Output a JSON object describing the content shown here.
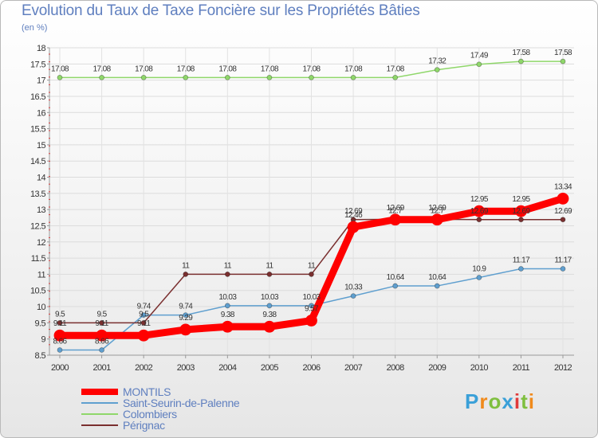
{
  "title": "Evolution du Taux de Taxe Foncière sur les Propriétés Bâties",
  "subtitle": "(en %)",
  "logo": {
    "text": "Proxiti",
    "letters": [
      "P",
      "r",
      "o",
      "x",
      "i",
      "t",
      "i"
    ],
    "colors": [
      "#3aa0d8",
      "#f08a1c",
      "#7fbf3f",
      "#3aa0d8",
      "#e03a3a",
      "#7fbf3f",
      "#f08a1c"
    ]
  },
  "chart_data": {
    "type": "line",
    "title": "Evolution du Taux de Taxe Foncière sur les Propriétés Bâties",
    "ylabel": "(en %)",
    "xlabel": "",
    "categories": [
      "2000",
      "2001",
      "2002",
      "2003",
      "2004",
      "2005",
      "2006",
      "2007",
      "2008",
      "2009",
      "2010",
      "2011",
      "2012"
    ],
    "ylim": [
      8.5,
      18
    ],
    "yticks": [
      "8.5",
      "9",
      "9.5",
      "10",
      "10.5",
      "11",
      "11.5",
      "12",
      "12.5",
      "13",
      "13.5",
      "14",
      "14.5",
      "15",
      "15.5",
      "16",
      "16.5",
      "17",
      "17.5",
      "18"
    ],
    "grid": true,
    "series": [
      {
        "name": "MONTILS",
        "color": "#ff0000",
        "bold": true,
        "values": [
          9.11,
          9.11,
          9.11,
          9.29,
          9.38,
          9.38,
          9.57,
          12.46,
          12.69,
          12.69,
          12.95,
          12.95,
          13.34
        ],
        "labels": [
          "9.11",
          "9.11",
          "9.11",
          "9.29",
          "9.38",
          "9.38",
          "9.57",
          "12.46",
          "12.69",
          "12.69",
          "12.95",
          "12.95",
          "13.34"
        ]
      },
      {
        "name": "Saint-Seurin-de-Palenne",
        "color": "#5f9fcf",
        "bold": false,
        "values": [
          8.66,
          8.66,
          9.74,
          9.74,
          10.03,
          10.03,
          10.03,
          10.33,
          10.64,
          10.64,
          10.9,
          11.17,
          11.17
        ],
        "labels": [
          "8.66",
          "8.66",
          "9.74",
          "9.74",
          "10.03",
          "10.03",
          "10.03",
          "10.33",
          "10.64",
          "10.64",
          "10.9",
          "11.17",
          "11.17"
        ]
      },
      {
        "name": "Colombiers",
        "color": "#8fd76a",
        "bold": false,
        "values": [
          17.08,
          17.08,
          17.08,
          17.08,
          17.08,
          17.08,
          17.08,
          17.08,
          17.08,
          17.32,
          17.49,
          17.58,
          17.58
        ],
        "labels": [
          "17.08",
          "17.08",
          "17.08",
          "17.08",
          "17.08",
          "17.08",
          "17.08",
          "17.08",
          "17.08",
          "17.32",
          "17.49",
          "17.58",
          "17.58"
        ]
      },
      {
        "name": "Pérignac",
        "color": "#7a2f2f",
        "bold": false,
        "values": [
          9.5,
          9.5,
          9.5,
          11,
          11,
          11,
          11,
          12.69,
          12.7,
          12.7,
          12.69,
          12.69,
          12.69
        ],
        "labels": [
          "9.5",
          "9.5",
          "9.5",
          "11",
          "11",
          "11",
          "11",
          "12.69",
          "12.7",
          "12.7",
          "12.69",
          "12.69",
          "12.69"
        ]
      }
    ]
  }
}
